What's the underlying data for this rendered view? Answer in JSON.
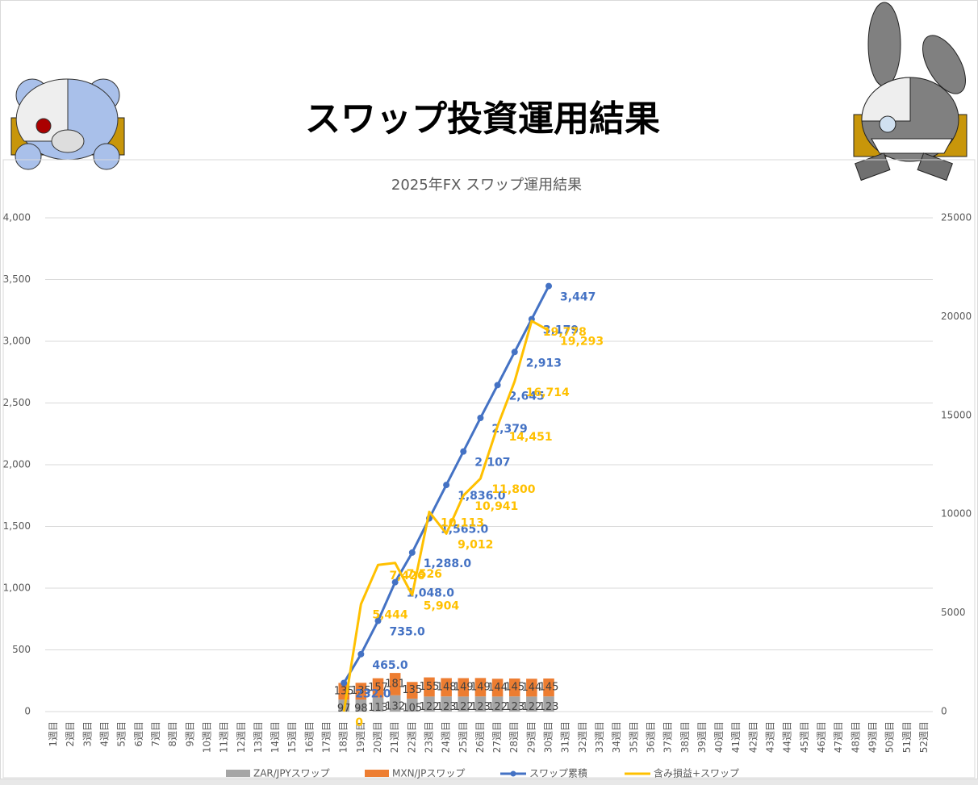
{
  "header": {
    "title": "スワップ投資運用結果"
  },
  "chart_data": {
    "type": "combo",
    "title": "2025年FX スワップ運用結果",
    "categories": [
      "1週目",
      "2週目",
      "3週目",
      "4週目",
      "5週目",
      "6週目",
      "7週目",
      "8週目",
      "9週目",
      "10週目",
      "11週目",
      "12週目",
      "13週目",
      "14週目",
      "15週目",
      "16週目",
      "17週目",
      "18週目",
      "19週目",
      "20週目",
      "21週目",
      "22週目",
      "23週目",
      "24週目",
      "25週目",
      "26週目",
      "27週目",
      "28週目",
      "29週目",
      "30週目",
      "31週目",
      "32週目",
      "33週目",
      "34週目",
      "35週目",
      "36週目",
      "37週目",
      "38週目",
      "39週目",
      "40週目",
      "41週目",
      "42週目",
      "43週目",
      "44週目",
      "45週目",
      "46週目",
      "47週目",
      "48週目",
      "49週目",
      "50週目",
      "51週目",
      "52週目"
    ],
    "series": [
      {
        "name": "ZAR/JPYスワップ",
        "kind": "bar",
        "color": "#a5a5a5",
        "values": [
          null,
          null,
          null,
          null,
          null,
          null,
          null,
          null,
          null,
          null,
          null,
          null,
          null,
          null,
          null,
          null,
          null,
          97,
          98,
          113,
          132,
          105,
          122,
          123,
          122,
          123,
          122,
          123,
          122,
          123,
          null,
          null,
          null,
          null,
          null,
          null,
          null,
          null,
          null,
          null,
          null,
          null,
          null,
          null,
          null,
          null,
          null,
          null,
          null,
          null,
          null,
          null
        ]
      },
      {
        "name": "MXN/JPスワップ",
        "kind": "bar",
        "color": "#ed7d31",
        "values": [
          null,
          null,
          null,
          null,
          null,
          null,
          null,
          null,
          null,
          null,
          null,
          null,
          null,
          null,
          null,
          null,
          null,
          135,
          135,
          157,
          181,
          135,
          155,
          148,
          149,
          149,
          144,
          145,
          144,
          145,
          null,
          null,
          null,
          null,
          null,
          null,
          null,
          null,
          null,
          null,
          null,
          null,
          null,
          null,
          null,
          null,
          null,
          null,
          null,
          null,
          null,
          null
        ]
      },
      {
        "name": "スワップ累積",
        "kind": "line",
        "color": "#4472c4",
        "markers": true,
        "values": [
          null,
          null,
          null,
          null,
          null,
          null,
          null,
          null,
          null,
          null,
          null,
          null,
          null,
          null,
          null,
          null,
          null,
          232,
          465,
          735,
          1048,
          1288,
          1565,
          1836,
          2107,
          2379,
          2645,
          2913,
          3179,
          3447,
          null,
          null,
          null,
          null,
          null,
          null,
          null,
          null,
          null,
          null,
          null,
          null,
          null,
          null,
          null,
          null,
          null,
          null,
          null,
          null,
          null,
          null
        ],
        "value_labels": [
          null,
          null,
          null,
          null,
          null,
          null,
          null,
          null,
          null,
          null,
          null,
          null,
          null,
          null,
          null,
          null,
          null,
          "232.0",
          "465.0",
          "735.0",
          "1,048.0",
          "1,288.0",
          "1,565.0",
          "1,836.0",
          "2,107",
          "2,379",
          "2,645",
          "2,913",
          "3,179",
          "3,447",
          null,
          null,
          null,
          null,
          null,
          null,
          null,
          null,
          null,
          null,
          null,
          null,
          null,
          null,
          null,
          null,
          null,
          null,
          null,
          null,
          null,
          null
        ]
      },
      {
        "name": "含み損益+スワップ",
        "kind": "line",
        "axis": "y2",
        "color": "#ffc000",
        "markers": false,
        "values": [
          null,
          null,
          null,
          null,
          null,
          null,
          null,
          null,
          null,
          null,
          null,
          null,
          null,
          null,
          null,
          null,
          null,
          0,
          5444,
          7426,
          7526,
          5904,
          10113,
          9012,
          10941,
          11800,
          14451,
          16714,
          19778,
          19293,
          null,
          null,
          null,
          null,
          null,
          null,
          null,
          null,
          null,
          null,
          null,
          null,
          null,
          null,
          null,
          null,
          null,
          null,
          null,
          null,
          null,
          null
        ],
        "value_labels": [
          null,
          null,
          null,
          null,
          null,
          null,
          null,
          null,
          null,
          null,
          null,
          null,
          null,
          null,
          null,
          null,
          null,
          "0",
          "5,444",
          "7,426",
          "7,526",
          "5,904",
          "10,113",
          "9,012",
          "10,941",
          "11,800",
          "14,451",
          "16,714",
          "19,778",
          "19,293",
          null,
          null,
          null,
          null,
          null,
          null,
          null,
          null,
          null,
          null,
          null,
          null,
          null,
          null,
          null,
          null,
          null,
          null,
          null,
          null,
          null,
          null
        ]
      }
    ],
    "ylim": [
      0,
      4000
    ],
    "yticks": [
      0,
      500,
      {
        "value": 1000,
        "label": "1,000"
      },
      {
        "value": 1500,
        "label": "1,500"
      },
      {
        "value": 2000,
        "label": "2,000"
      },
      {
        "value": 2500,
        "label": "2,500"
      },
      {
        "value": 3000,
        "label": "3,000"
      },
      {
        "value": 3500,
        "label": "3,500"
      },
      {
        "value": 4000,
        "label": "4,000"
      }
    ],
    "y2lim": [
      0,
      25000
    ],
    "y2ticks": [
      0,
      5000,
      10000,
      15000,
      20000,
      25000
    ],
    "grid": true,
    "legend": "bottom"
  }
}
